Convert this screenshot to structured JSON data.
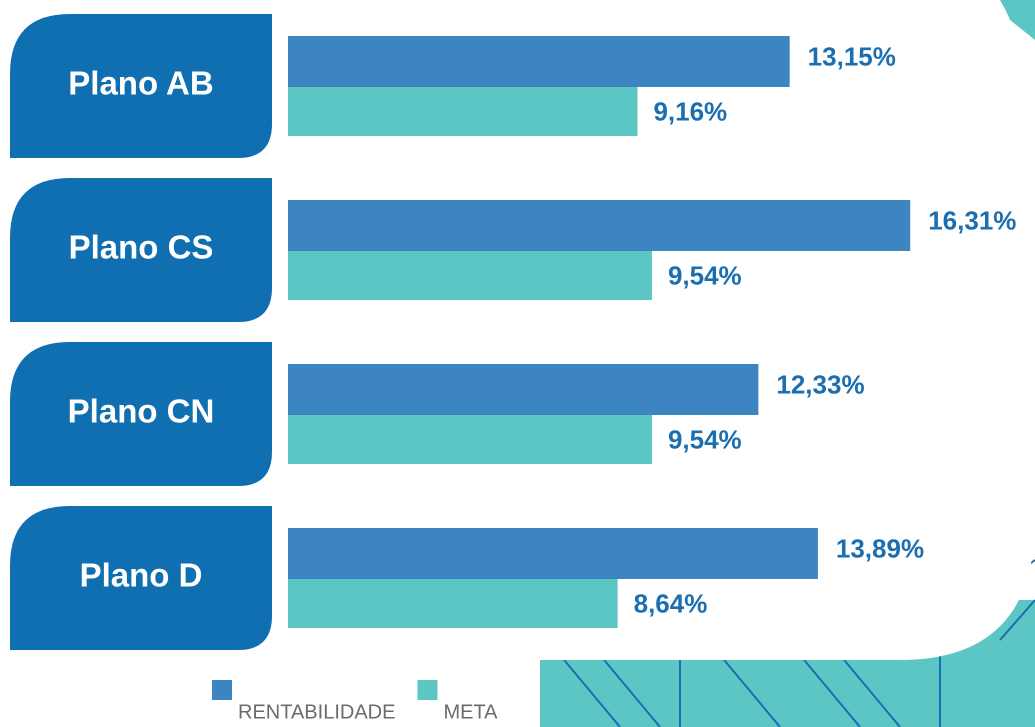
{
  "chart_data": {
    "type": "bar",
    "orientation": "horizontal",
    "categories": [
      "Plano AB",
      "Plano CS",
      "Plano CN",
      "Plano D"
    ],
    "series": [
      {
        "name": "RENTABILIDADE",
        "color": "#3d85c1",
        "values": [
          13.15,
          16.31,
          12.33,
          13.89
        ],
        "value_labels": [
          "13,15%",
          "16,31%",
          "12,33%",
          "13,89%"
        ]
      },
      {
        "name": "META",
        "color": "#5cc6c5",
        "values": [
          9.16,
          9.54,
          9.54,
          8.64
        ],
        "value_labels": [
          "9,16%",
          "9,54%",
          "9,54%",
          "8,64%"
        ]
      }
    ]
  }
}
